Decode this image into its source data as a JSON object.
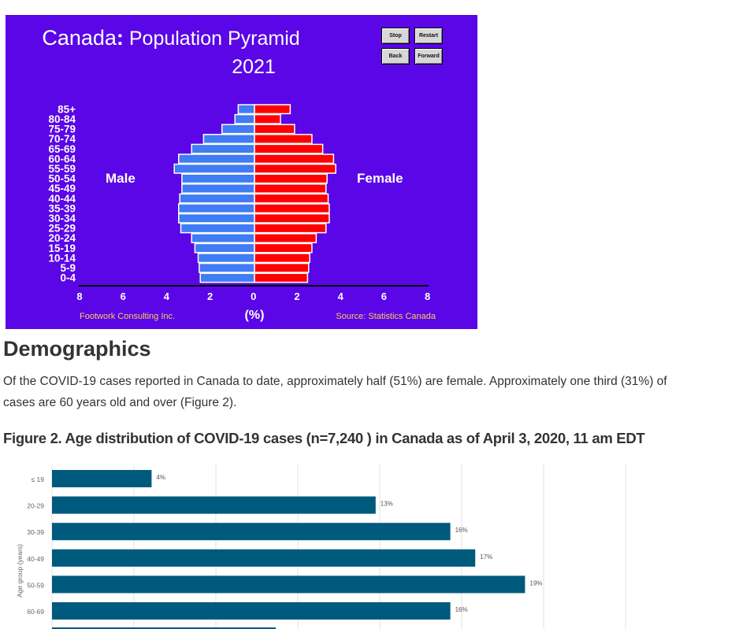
{
  "pyramid": {
    "country": "Canada",
    "colon": ":",
    "title_rest": " Population Pyramid",
    "year": "2021",
    "buttons": [
      {
        "id": "stop",
        "label": "Stop"
      },
      {
        "id": "restart",
        "label": "Restart"
      },
      {
        "id": "back",
        "label": "Back"
      },
      {
        "id": "forward",
        "label": "Forward"
      }
    ],
    "male_label": "Male",
    "female_label": "Female",
    "axis_unit": "(%)",
    "credit_left": "Footwork Consulting Inc.",
    "credit_right": "Source: Statistics Canada",
    "colors": {
      "background": "#5a06e6",
      "male": "#3f7cf5",
      "female": "#ff0000",
      "text": "#ffffff",
      "credit": "#ffcc55"
    }
  },
  "section": {
    "heading": "Demographics",
    "paragraph_line1": "Of the COVID-19 cases reported in Canada to date, approximately half (51%) are female. Approximately one third (31%) of",
    "paragraph_line2": "cases are 60 years old and over (Figure 2)."
  },
  "figure2": {
    "caption": "Figure 2. Age distribution of COVID-19 cases (n=7,240 ) in Canada as of April 3, 2020, 11 am EDT"
  },
  "chart_data": [
    {
      "type": "bar",
      "orientation": "horizontal-pyramid",
      "title": "Canada: Population Pyramid 2021",
      "categories": [
        "85+",
        "80-84",
        "75-79",
        "70-74",
        "65-69",
        "60-64",
        "55-59",
        "50-54",
        "45-49",
        "40-44",
        "35-39",
        "30-34",
        "25-29",
        "20-24",
        "15-19",
        "10-14",
        "5-9",
        "0-4"
      ],
      "series": [
        {
          "name": "Male",
          "values": [
            0.75,
            0.9,
            1.5,
            2.35,
            2.9,
            3.5,
            3.7,
            3.35,
            3.35,
            3.45,
            3.5,
            3.5,
            3.4,
            2.9,
            2.75,
            2.6,
            2.55,
            2.5
          ]
        },
        {
          "name": "Female",
          "values": [
            1.65,
            1.2,
            1.85,
            2.65,
            3.15,
            3.65,
            3.75,
            3.35,
            3.3,
            3.4,
            3.45,
            3.45,
            3.3,
            2.85,
            2.65,
            2.55,
            2.5,
            2.45
          ]
        }
      ],
      "xlabel": "(%)",
      "xlim": [
        0,
        8
      ],
      "xticks": [
        "8",
        "6",
        "4",
        "2",
        "0",
        "2",
        "4",
        "6",
        "8"
      ]
    },
    {
      "type": "bar",
      "orientation": "horizontal",
      "ylabel": "Age group (years)",
      "categories": [
        "≤ 19",
        "20-29",
        "30-39",
        "40-49",
        "50-59",
        "60-69"
      ],
      "values": [
        4,
        13,
        16,
        17,
        19,
        16
      ],
      "value_labels": [
        "4%",
        "13%",
        "16%",
        "17%",
        "19%",
        "16%"
      ],
      "xlim": [
        0,
        23
      ],
      "grid": "vertical",
      "bar_color": "#005a7d"
    }
  ]
}
